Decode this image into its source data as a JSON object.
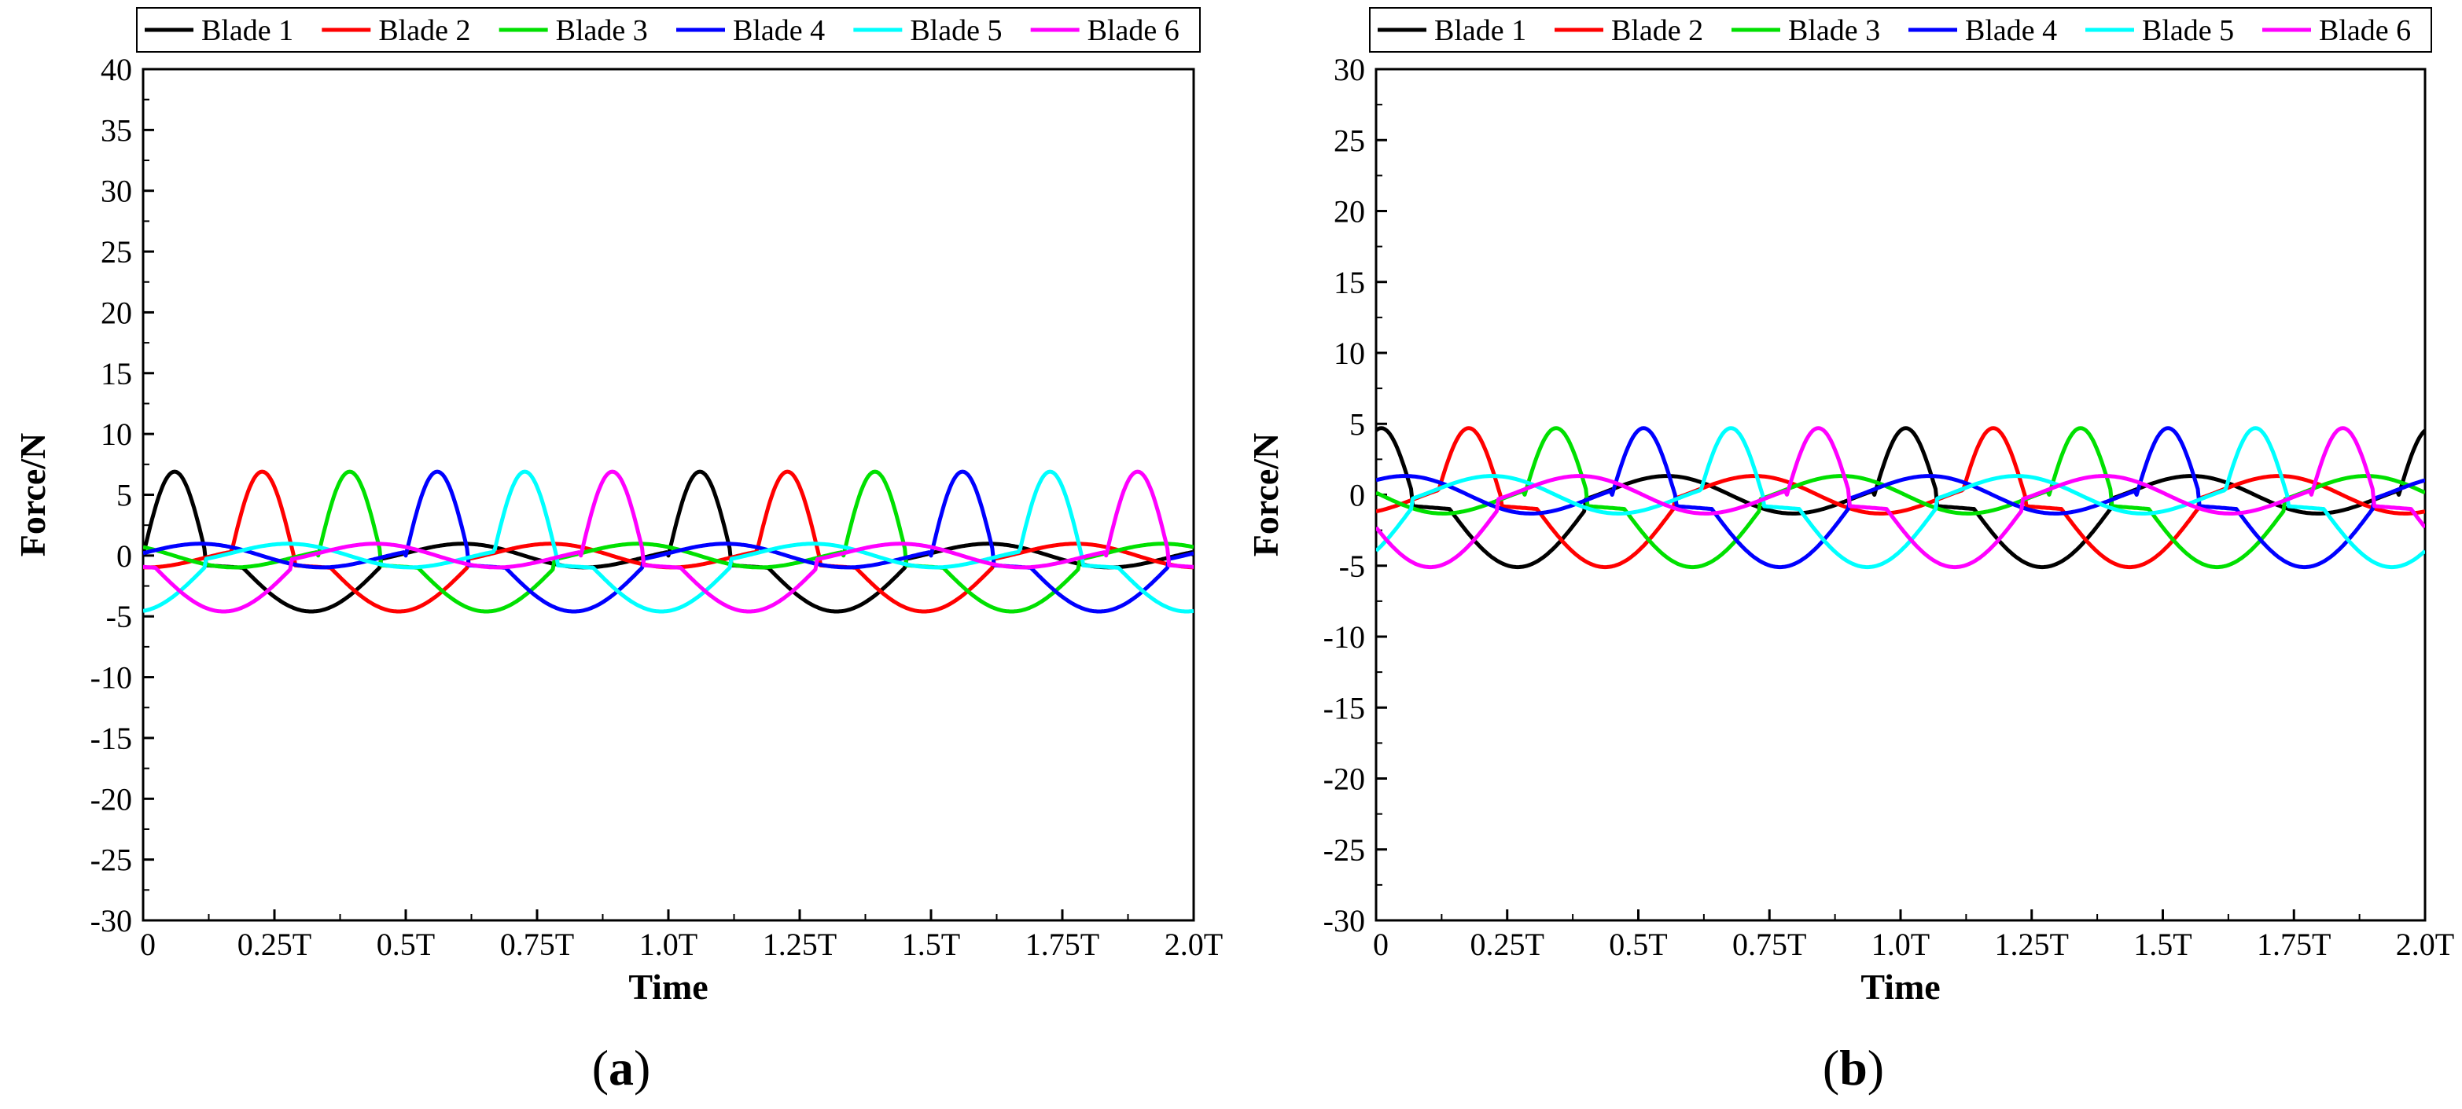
{
  "chart_data": [
    {
      "type": "line",
      "panel_label": "a",
      "xlabel": "Time",
      "ylabel": "Force/N",
      "xlim": [
        0,
        2.0
      ],
      "ylim": [
        -30,
        40
      ],
      "yticks": [
        -30,
        -25,
        -20,
        -15,
        -10,
        -5,
        0,
        5,
        10,
        15,
        20,
        25,
        30,
        35,
        40
      ],
      "xticks": [
        {
          "value": 0,
          "label": "0"
        },
        {
          "value": 0.25,
          "label": "0.25T"
        },
        {
          "value": 0.5,
          "label": "0.5T"
        },
        {
          "value": 0.75,
          "label": "0.75T"
        },
        {
          "value": 1.0,
          "label": "1.0T"
        },
        {
          "value": 1.25,
          "label": "1.25T"
        },
        {
          "value": 1.5,
          "label": "1.5T"
        },
        {
          "value": 1.75,
          "label": "1.75T"
        },
        {
          "value": 2.0,
          "label": "2.0T"
        }
      ],
      "legend_position": "top",
      "shape": {
        "pos_peak": 6.9,
        "neg_peak": -4.6,
        "wander": 1.2,
        "period": 1.0
      },
      "series": [
        {
          "name": "Blade 1",
          "color": "#000000",
          "phase": 0.0
        },
        {
          "name": "Blade 2",
          "color": "#ff0000",
          "phase": 0.1667
        },
        {
          "name": "Blade 3",
          "color": "#00e000",
          "phase": 0.3333
        },
        {
          "name": "Blade 4",
          "color": "#0000ff",
          "phase": 0.5
        },
        {
          "name": "Blade 5",
          "color": "#00ffff",
          "phase": 0.6667
        },
        {
          "name": "Blade 6",
          "color": "#ff00ff",
          "phase": 0.8333
        }
      ]
    },
    {
      "type": "line",
      "panel_label": "b",
      "xlabel": "Time",
      "ylabel": "Force/N",
      "xlim": [
        0,
        2.0
      ],
      "ylim": [
        -30,
        30
      ],
      "yticks": [
        -30,
        -25,
        -20,
        -15,
        -10,
        -5,
        0,
        5,
        10,
        15,
        20,
        25,
        30
      ],
      "xticks": [
        {
          "value": 0,
          "label": "0"
        },
        {
          "value": 0.25,
          "label": "0.25T"
        },
        {
          "value": 0.5,
          "label": "0.5T"
        },
        {
          "value": 0.75,
          "label": "0.75T"
        },
        {
          "value": 1.0,
          "label": "1.0T"
        },
        {
          "value": 1.25,
          "label": "1.25T"
        },
        {
          "value": 1.5,
          "label": "1.5T"
        },
        {
          "value": 1.75,
          "label": "1.75T"
        },
        {
          "value": 2.0,
          "label": "2.0T"
        }
      ],
      "legend_position": "top",
      "shape": {
        "pos_peak": 4.7,
        "neg_peak": -5.1,
        "wander": 1.8,
        "period": 1.0
      },
      "series": [
        {
          "name": "Blade 1",
          "color": "#000000",
          "phase": 0.95
        },
        {
          "name": "Blade 2",
          "color": "#ff0000",
          "phase": 0.1167
        },
        {
          "name": "Blade 3",
          "color": "#00e000",
          "phase": 0.2833
        },
        {
          "name": "Blade 4",
          "color": "#0000ff",
          "phase": 0.45
        },
        {
          "name": "Blade 5",
          "color": "#00ffff",
          "phase": 0.6167
        },
        {
          "name": "Blade 6",
          "color": "#ff00ff",
          "phase": 0.7833
        }
      ]
    }
  ]
}
